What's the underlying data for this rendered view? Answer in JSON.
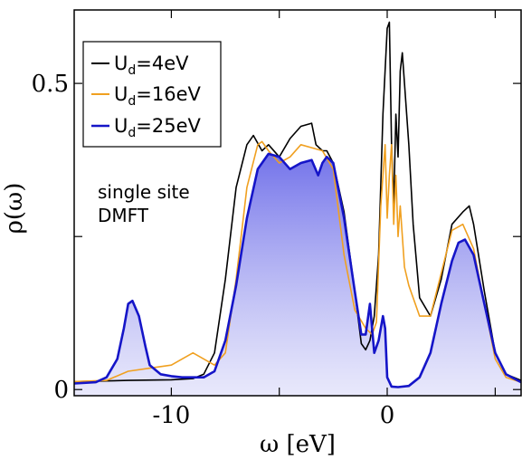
{
  "chart_data": {
    "type": "line",
    "xlabel": "ω [eV]",
    "ylabel": "ρ(ω)",
    "xlim": [
      -14.5,
      6.2
    ],
    "ylim": [
      -0.01,
      0.62
    ],
    "x_ticks": [
      {
        "value": -10,
        "label": "-10"
      },
      {
        "value": 0,
        "label": "0"
      }
    ],
    "x_minor_ticks": [
      -5,
      5
    ],
    "y_ticks": [
      {
        "value": 0,
        "label": "0"
      },
      {
        "value": 0.5,
        "label": "0.5"
      }
    ],
    "y_minor_ticks": [
      0.25
    ],
    "annotation": {
      "lines": [
        "single site",
        "DMFT"
      ]
    },
    "legend_position": "top-left",
    "series": [
      {
        "name": "U_d=4eV",
        "name_main": "U",
        "name_sub": "d",
        "name_rest": "=4eV",
        "color": "#000000",
        "fill": false,
        "x": [
          -14.5,
          -12,
          -10,
          -9,
          -8.5,
          -8,
          -7.5,
          -7,
          -6.5,
          -6.2,
          -5.8,
          -5.5,
          -5,
          -4.5,
          -4,
          -3.5,
          -3.3,
          -3,
          -2.8,
          -2.5,
          -2,
          -1.5,
          -1.2,
          -1,
          -0.8,
          -0.6,
          -0.4,
          -0.2,
          0,
          0.1,
          0.2,
          0.3,
          0.4,
          0.5,
          0.6,
          0.7,
          0.8,
          1,
          1.2,
          1.5,
          2,
          2.5,
          3,
          3.5,
          3.8,
          4,
          4.5,
          5,
          5.5,
          6.2
        ],
        "y": [
          0.013,
          0.015,
          0.016,
          0.018,
          0.025,
          0.06,
          0.18,
          0.33,
          0.4,
          0.415,
          0.39,
          0.4,
          0.38,
          0.41,
          0.43,
          0.435,
          0.4,
          0.39,
          0.39,
          0.37,
          0.29,
          0.16,
          0.075,
          0.065,
          0.08,
          0.12,
          0.22,
          0.45,
          0.59,
          0.6,
          0.4,
          0.3,
          0.45,
          0.38,
          0.52,
          0.55,
          0.5,
          0.4,
          0.27,
          0.15,
          0.12,
          0.18,
          0.27,
          0.29,
          0.3,
          0.27,
          0.16,
          0.06,
          0.025,
          0.015
        ]
      },
      {
        "name": "U_d=16eV",
        "name_main": "U",
        "name_sub": "d",
        "name_rest": "=16eV",
        "color": "#f0a020",
        "fill": false,
        "x": [
          -14.5,
          -13,
          -12,
          -11,
          -10,
          -9.5,
          -9,
          -8.5,
          -8,
          -7.5,
          -7,
          -6.5,
          -6,
          -5.8,
          -5.5,
          -5,
          -4.5,
          -4,
          -3.5,
          -3,
          -2.5,
          -2,
          -1.5,
          -1,
          -0.7,
          -0.5,
          -0.3,
          -0.1,
          0,
          0.1,
          0.2,
          0.3,
          0.4,
          0.5,
          0.6,
          0.8,
          1,
          1.5,
          2,
          2.5,
          3,
          3.5,
          4,
          4.5,
          5,
          5.5,
          6.2
        ],
        "y": [
          0.013,
          0.015,
          0.03,
          0.035,
          0.04,
          0.05,
          0.06,
          0.05,
          0.04,
          0.06,
          0.18,
          0.33,
          0.4,
          0.405,
          0.39,
          0.37,
          0.38,
          0.4,
          0.395,
          0.39,
          0.36,
          0.22,
          0.13,
          0.1,
          0.09,
          0.11,
          0.3,
          0.4,
          0.28,
          0.35,
          0.4,
          0.27,
          0.35,
          0.25,
          0.3,
          0.2,
          0.17,
          0.12,
          0.12,
          0.19,
          0.26,
          0.27,
          0.23,
          0.14,
          0.05,
          0.02,
          0.012
        ]
      },
      {
        "name": "U_d=25eV",
        "name_main": "U",
        "name_sub": "d",
        "name_rest": "=25eV",
        "color": "#1515c8",
        "fill": true,
        "x": [
          -14.5,
          -13.5,
          -13,
          -12.5,
          -12.2,
          -12,
          -11.8,
          -11.5,
          -11.2,
          -11,
          -10.5,
          -10,
          -9.5,
          -9,
          -8.5,
          -8,
          -7.5,
          -7,
          -6.5,
          -6,
          -5.5,
          -5,
          -4.5,
          -4,
          -3.5,
          -3.2,
          -3,
          -2.8,
          -2.5,
          -2,
          -1.5,
          -1.2,
          -1,
          -0.8,
          -0.6,
          -0.4,
          -0.2,
          -0.1,
          0,
          0.2,
          0.5,
          1,
          1.5,
          2,
          2.5,
          3,
          3.3,
          3.6,
          4,
          4.5,
          5,
          5.5,
          6.2
        ],
        "y": [
          0.01,
          0.012,
          0.02,
          0.05,
          0.1,
          0.14,
          0.145,
          0.12,
          0.07,
          0.04,
          0.025,
          0.022,
          0.02,
          0.02,
          0.02,
          0.03,
          0.08,
          0.17,
          0.28,
          0.36,
          0.385,
          0.38,
          0.36,
          0.37,
          0.375,
          0.35,
          0.37,
          0.38,
          0.37,
          0.28,
          0.16,
          0.09,
          0.09,
          0.14,
          0.06,
          0.08,
          0.12,
          0.1,
          0.02,
          0.005,
          0.004,
          0.006,
          0.02,
          0.06,
          0.14,
          0.21,
          0.24,
          0.245,
          0.22,
          0.14,
          0.06,
          0.025,
          0.012
        ]
      }
    ]
  }
}
